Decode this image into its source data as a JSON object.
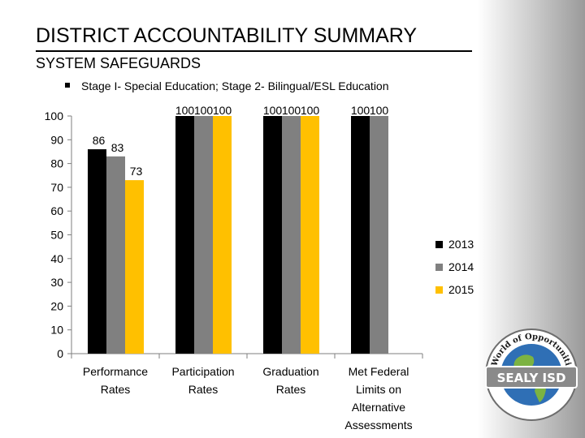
{
  "slide": {
    "title": "DISTRICT ACCOUNTABILITY SUMMARY",
    "subtitle": "SYSTEM SAFEGUARDS",
    "bullet": "Stage I- Special Education; Stage 2- Bilingual/ESL Education"
  },
  "logo": {
    "arc_text": "A World of Opportunities",
    "banner_text": "SEALY ISD",
    "colors": {
      "ocean": "#2f6fb5",
      "land": "#7cb342",
      "ring": "#ffffff",
      "ribbon": "#8a8a8a"
    }
  },
  "chart_data": {
    "type": "bar",
    "categories": [
      [
        "Performance",
        "Rates"
      ],
      [
        "Participation",
        "Rates"
      ],
      [
        "Graduation",
        "Rates"
      ],
      [
        "Met Federal",
        "Limits on",
        "Alternative",
        "Assessments"
      ]
    ],
    "series": [
      {
        "name": "2013",
        "color": "#000000",
        "values": [
          86,
          100,
          100,
          100
        ]
      },
      {
        "name": "2014",
        "color": "#808080",
        "values": [
          83,
          100,
          100,
          100
        ]
      },
      {
        "name": "2015",
        "color": "#ffc000",
        "values": [
          73,
          100,
          100,
          null
        ]
      }
    ],
    "ylim": [
      0,
      100
    ],
    "yticks": [
      0,
      10,
      20,
      30,
      40,
      50,
      60,
      70,
      80,
      90,
      100
    ],
    "legend": "right",
    "grid": false,
    "data_labels": true
  }
}
